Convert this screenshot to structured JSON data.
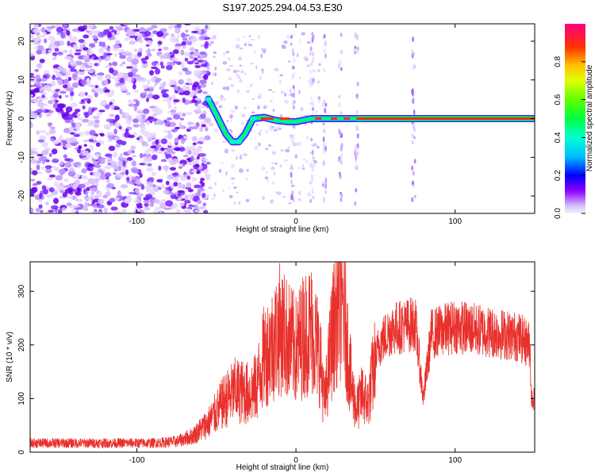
{
  "title": "S197.2025.294.04.53.E30",
  "chart_data": [
    {
      "type": "heatmap",
      "name": "spectrogram",
      "xlabel": "Height of straight line (km)",
      "ylabel": "Frequency (Hz)",
      "xlim": [
        -167,
        150
      ],
      "ylim": [
        -24.5,
        24.5
      ],
      "xticks": [
        -100,
        0,
        100
      ],
      "yticks": [
        -20,
        -10,
        0,
        10,
        20
      ],
      "colorbar": {
        "label": "Normalized spectral amplitude",
        "range": [
          0,
          1
        ],
        "ticks": [
          0.0,
          0.2,
          0.4,
          0.6,
          0.8
        ]
      },
      "ridge": [
        {
          "x": -55,
          "f": 5
        },
        {
          "x": -50,
          "f": 1
        },
        {
          "x": -44,
          "f": -4
        },
        {
          "x": -40,
          "f": -6
        },
        {
          "x": -36,
          "f": -6
        },
        {
          "x": -32,
          "f": -4
        },
        {
          "x": -27,
          "f": 0
        },
        {
          "x": -20,
          "f": 0.3
        },
        {
          "x": -12,
          "f": -0.5
        },
        {
          "x": -5,
          "f": -0.8
        },
        {
          "x": 0,
          "f": -0.8
        },
        {
          "x": 10,
          "f": 0
        },
        {
          "x": 40,
          "f": 0
        },
        {
          "x": 150,
          "f": 0
        }
      ]
    },
    {
      "type": "line",
      "name": "snr",
      "xlabel": "Height of straight line (km)",
      "ylabel": "SNR (10 * v/v)",
      "xlim": [
        -167,
        150
      ],
      "ylim": [
        0,
        355
      ],
      "xticks": [
        -100,
        0,
        100
      ],
      "yticks": [
        0,
        100,
        200,
        300
      ],
      "color": "#e8312c",
      "envelope": [
        {
          "x": -167,
          "y": 17
        },
        {
          "x": -90,
          "y": 17
        },
        {
          "x": -75,
          "y": 20
        },
        {
          "x": -65,
          "y": 30
        },
        {
          "x": -55,
          "y": 55
        },
        {
          "x": -45,
          "y": 95
        },
        {
          "x": -38,
          "y": 115
        },
        {
          "x": -30,
          "y": 110
        },
        {
          "x": -25,
          "y": 120
        },
        {
          "x": -20,
          "y": 180
        },
        {
          "x": -15,
          "y": 200
        },
        {
          "x": -10,
          "y": 230
        },
        {
          "x": -5,
          "y": 210
        },
        {
          "x": 0,
          "y": 190
        },
        {
          "x": 5,
          "y": 220
        },
        {
          "x": 10,
          "y": 230
        },
        {
          "x": 15,
          "y": 180
        },
        {
          "x": 18,
          "y": 90
        },
        {
          "x": 22,
          "y": 200
        },
        {
          "x": 27,
          "y": 290
        },
        {
          "x": 30,
          "y": 270
        },
        {
          "x": 35,
          "y": 120
        },
        {
          "x": 38,
          "y": 80
        },
        {
          "x": 42,
          "y": 110
        },
        {
          "x": 45,
          "y": 90
        },
        {
          "x": 48,
          "y": 140
        },
        {
          "x": 52,
          "y": 200
        },
        {
          "x": 60,
          "y": 230
        },
        {
          "x": 75,
          "y": 240
        },
        {
          "x": 80,
          "y": 100
        },
        {
          "x": 85,
          "y": 220
        },
        {
          "x": 100,
          "y": 235
        },
        {
          "x": 120,
          "y": 225
        },
        {
          "x": 140,
          "y": 215
        },
        {
          "x": 147,
          "y": 200
        },
        {
          "x": 148,
          "y": 100
        },
        {
          "x": 150,
          "y": 100
        }
      ]
    }
  ]
}
